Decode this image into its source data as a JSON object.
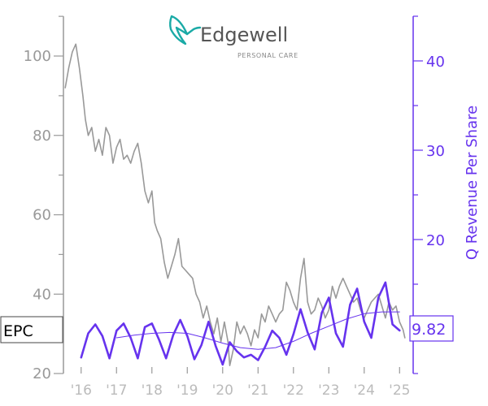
{
  "brand": {
    "name": "Edgewell",
    "tagline": "PERSONAL CARE",
    "logo_color": "#1aaaa6",
    "text_color": "#555555"
  },
  "ticker": {
    "symbol": "EPC",
    "last_value_label": "9.82"
  },
  "colors": {
    "price": "#999999",
    "revenue": "#6633ee",
    "revenue_trend": "#6633ee",
    "axis_left": "#999999",
    "axis_right": "#6633ee",
    "tick_x": "#bbbbbb"
  },
  "chart_data": {
    "type": "line",
    "xlabel": "",
    "ylabel_left": "",
    "ylabel_right": "Q Revenue Per Share",
    "x_range": [
      2015.5,
      2025.2
    ],
    "ylim_left": [
      20,
      110
    ],
    "ylim_right": [
      3,
      45
    ],
    "x_ticks": [
      {
        "value": 2016,
        "label": "'16"
      },
      {
        "value": 2017,
        "label": "'17"
      },
      {
        "value": 2018,
        "label": "'18"
      },
      {
        "value": 2019,
        "label": "'19"
      },
      {
        "value": 2020,
        "label": "'20"
      },
      {
        "value": 2021,
        "label": "'21"
      },
      {
        "value": 2022,
        "label": "'22"
      },
      {
        "value": 2023,
        "label": "'23"
      },
      {
        "value": 2024,
        "label": "'24"
      },
      {
        "value": 2025,
        "label": "'25"
      }
    ],
    "y_ticks_left": [
      20,
      40,
      60,
      80,
      100
    ],
    "y_ticks_right": [
      20,
      30,
      40
    ],
    "series": [
      {
        "name": "EPC",
        "axis": "left",
        "x": [
          2015.55,
          2015.65,
          2015.75,
          2015.85,
          2015.95,
          2016.05,
          2016.12,
          2016.2,
          2016.3,
          2016.4,
          2016.5,
          2016.6,
          2016.7,
          2016.8,
          2016.9,
          2017.0,
          2017.1,
          2017.2,
          2017.3,
          2017.4,
          2017.5,
          2017.6,
          2017.7,
          2017.8,
          2017.9,
          2018.0,
          2018.08,
          2018.15,
          2018.25,
          2018.35,
          2018.45,
          2018.55,
          2018.65,
          2018.75,
          2018.85,
          2018.95,
          2019.05,
          2019.15,
          2019.25,
          2019.35,
          2019.45,
          2019.55,
          2019.65,
          2019.75,
          2019.85,
          2019.95,
          2020.05,
          2020.15,
          2020.2,
          2020.3,
          2020.4,
          2020.5,
          2020.6,
          2020.7,
          2020.8,
          2020.9,
          2021.0,
          2021.1,
          2021.2,
          2021.3,
          2021.4,
          2021.5,
          2021.6,
          2021.7,
          2021.8,
          2021.9,
          2022.0,
          2022.1,
          2022.2,
          2022.3,
          2022.4,
          2022.5,
          2022.6,
          2022.7,
          2022.8,
          2022.9,
          2023.0,
          2023.1,
          2023.2,
          2023.3,
          2023.4,
          2023.5,
          2023.6,
          2023.7,
          2023.8,
          2023.9,
          2024.0,
          2024.1,
          2024.2,
          2024.3,
          2024.4,
          2024.5,
          2024.6,
          2024.7,
          2024.8,
          2024.9,
          2025.0,
          2025.1,
          2025.15
        ],
        "y": [
          92,
          97,
          101,
          103,
          97,
          90,
          84,
          80,
          82,
          76,
          79,
          75,
          82,
          80,
          73,
          77,
          79,
          74,
          75,
          73,
          76,
          78,
          73,
          66,
          63,
          66,
          58,
          56,
          54,
          48,
          44,
          47,
          50,
          54,
          47,
          46,
          45,
          44,
          40,
          38,
          34,
          37,
          33,
          30,
          34,
          28,
          33,
          28,
          22,
          26,
          33,
          30,
          32,
          30,
          27,
          31,
          29,
          35,
          33,
          37,
          35,
          33,
          35,
          36,
          43,
          41,
          38,
          36,
          44,
          49,
          38,
          35,
          36,
          39,
          37,
          34,
          36,
          42,
          39,
          42,
          44,
          42,
          40,
          38,
          39,
          36,
          34,
          36,
          38,
          39,
          40,
          37,
          34,
          38,
          36,
          37,
          33,
          31,
          29
        ]
      },
      {
        "name": "Q Revenue Per Share",
        "axis": "right",
        "x": [
          2016.0,
          2016.2,
          2016.4,
          2016.6,
          2016.8,
          2017.0,
          2017.2,
          2017.4,
          2017.6,
          2017.8,
          2018.0,
          2018.2,
          2018.4,
          2018.6,
          2018.8,
          2019.0,
          2019.2,
          2019.4,
          2019.6,
          2019.8,
          2020.0,
          2020.2,
          2020.4,
          2020.6,
          2020.8,
          2021.0,
          2021.2,
          2021.4,
          2021.6,
          2021.8,
          2022.0,
          2022.2,
          2022.4,
          2022.6,
          2022.8,
          2023.0,
          2023.2,
          2023.4,
          2023.6,
          2023.8,
          2024.0,
          2024.2,
          2024.4,
          2024.6,
          2024.8,
          2025.0
        ],
        "y": [
          6.8,
          9.5,
          10.5,
          9.2,
          6.7,
          9.8,
          10.6,
          9.0,
          6.7,
          10.2,
          10.6,
          8.8,
          6.7,
          9.3,
          11.0,
          9.2,
          6.6,
          8.2,
          10.8,
          8.1,
          6.0,
          8.5,
          7.5,
          6.8,
          7.1,
          6.5,
          8.0,
          9.8,
          9.0,
          7.1,
          9.4,
          12.2,
          9.6,
          7.7,
          11.8,
          13.5,
          9.5,
          8.0,
          12.7,
          14.5,
          10.8,
          9.0,
          13.5,
          15.2,
          10.5,
          9.82
        ]
      },
      {
        "name": "",
        "axis": "right",
        "style": "trend",
        "x": [
          2017.0,
          2017.5,
          2018.0,
          2018.5,
          2019.0,
          2019.5,
          2020.0,
          2020.5,
          2021.0,
          2021.5,
          2022.0,
          2022.5,
          2023.0,
          2023.5,
          2024.0,
          2024.5,
          2025.0
        ],
        "y": [
          9.0,
          9.3,
          9.5,
          9.6,
          9.5,
          9.0,
          8.4,
          7.9,
          7.7,
          7.9,
          8.6,
          9.5,
          10.3,
          11.1,
          11.7,
          11.9,
          11.9
        ]
      }
    ]
  }
}
